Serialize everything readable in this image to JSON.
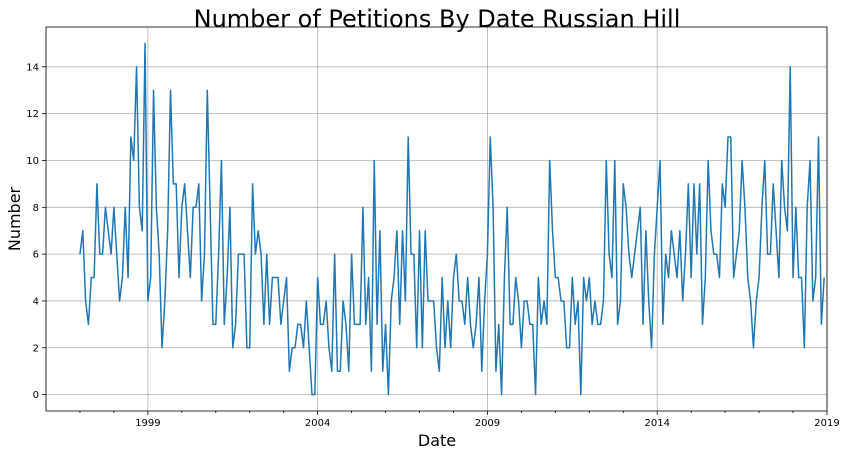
{
  "chart_data": {
    "type": "line",
    "title": "Number of Petitions By Date Russian Hill",
    "xlabel": "Date",
    "ylabel": "Number",
    "grid": true,
    "xlim": [
      "1996-01",
      "2019-01"
    ],
    "ylim": [
      -0.7,
      15.7
    ],
    "xticks": [
      "1999",
      "2004",
      "2009",
      "2014",
      "2019"
    ],
    "yticks": [
      0,
      2,
      4,
      6,
      8,
      10,
      12,
      14
    ],
    "series": [
      {
        "color": "#1f77b4",
        "start": "1997-01",
        "frequency": "monthly",
        "values": [
          6,
          7,
          4,
          3,
          5,
          5,
          9,
          6,
          6,
          8,
          7,
          6,
          8,
          6,
          4,
          5,
          8,
          5,
          11,
          10,
          14,
          8,
          7,
          15,
          4,
          5,
          13,
          8,
          6,
          2,
          4,
          7,
          13,
          9,
          9,
          5,
          8,
          9,
          7,
          5,
          8,
          8,
          9,
          4,
          6,
          13,
          8,
          3,
          3,
          6,
          10,
          3,
          5,
          8,
          2,
          3,
          6,
          6,
          6,
          2,
          2,
          9,
          6,
          7,
          6,
          3,
          6,
          3,
          5,
          5,
          5,
          3,
          4,
          5,
          1,
          2,
          2,
          3,
          3,
          2,
          4,
          2,
          0,
          0,
          5,
          3,
          3,
          4,
          2,
          1,
          6,
          1,
          1,
          4,
          3,
          1,
          6,
          3,
          3,
          3,
          8,
          3,
          5,
          1,
          10,
          3,
          7,
          1,
          3,
          0,
          4,
          5,
          7,
          3,
          7,
          4,
          11,
          6,
          6,
          2,
          7,
          2,
          7,
          4,
          4,
          4,
          2,
          1,
          5,
          2,
          4,
          2,
          5,
          6,
          4,
          4,
          3,
          5,
          3,
          2,
          3,
          5,
          1,
          4,
          6,
          11,
          8,
          1,
          3,
          0,
          5,
          8,
          3,
          3,
          5,
          4,
          2,
          4,
          4,
          3,
          3,
          0,
          5,
          3,
          4,
          3,
          10,
          7,
          5,
          5,
          4,
          4,
          2,
          2,
          5,
          3,
          4,
          0,
          5,
          4,
          5,
          3,
          4,
          3,
          3,
          4,
          10,
          6,
          5,
          10,
          3,
          4,
          9,
          8,
          6,
          5,
          6,
          7,
          8,
          3,
          7,
          4,
          2,
          6,
          8,
          10,
          3,
          6,
          5,
          7,
          6,
          5,
          7,
          4,
          6,
          9,
          5,
          9,
          6,
          9,
          3,
          5,
          10,
          7,
          6,
          6,
          5,
          9,
          8,
          11,
          11,
          5,
          6,
          7,
          10,
          8,
          5,
          4,
          2,
          4,
          5,
          8,
          10,
          6,
          6,
          9,
          7,
          5,
          10,
          8,
          7,
          14,
          5,
          8,
          5,
          5,
          2,
          8,
          10,
          4,
          5,
          11,
          3,
          5
        ]
      }
    ]
  }
}
